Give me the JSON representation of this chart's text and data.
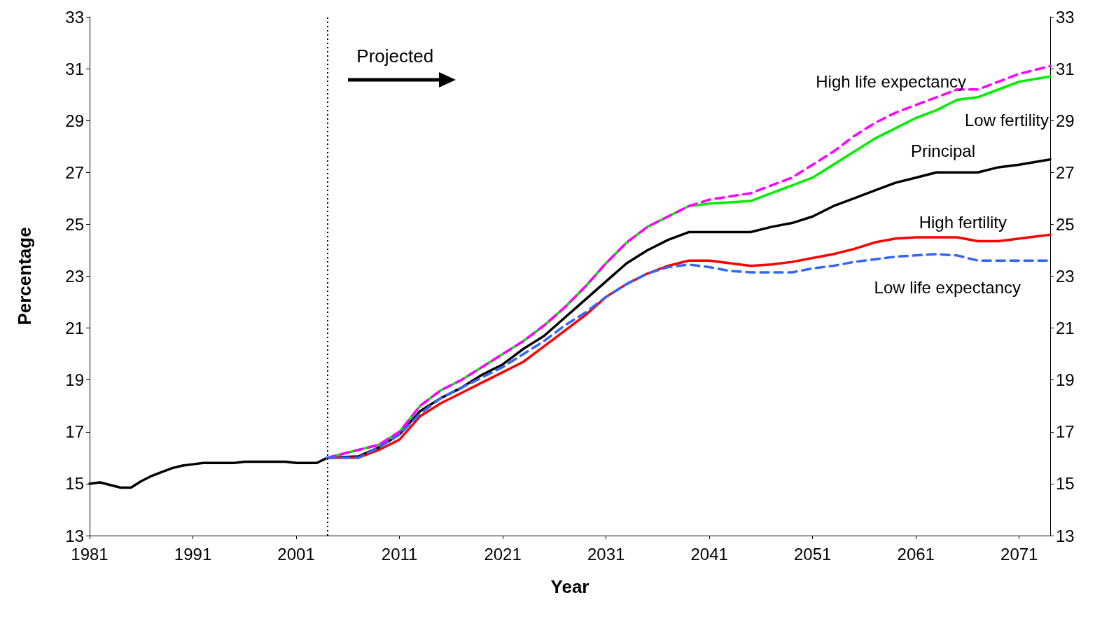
{
  "chart_data": {
    "type": "line",
    "xlabel": "Year",
    "ylabel": "Percentage",
    "xlim": [
      1981,
      2074
    ],
    "xticks": [
      1981,
      1991,
      2001,
      2011,
      2021,
      2031,
      2041,
      2051,
      2061,
      2071
    ],
    "ylim": [
      13,
      33
    ],
    "yticks": [
      13,
      15,
      17,
      19,
      21,
      23,
      25,
      27,
      29,
      31,
      33
    ],
    "y2lim": [
      13,
      33
    ],
    "y2ticks": [
      13,
      15,
      17,
      19,
      21,
      23,
      25,
      27,
      29,
      31,
      33
    ],
    "grid": false,
    "legend": false,
    "marker": "none",
    "ref_lines": [
      {
        "axis": "x",
        "value": 2004,
        "color": "#000000",
        "line_style": "dotted"
      }
    ],
    "annotations": [
      "Projected"
    ],
    "series": [
      {
        "name": "Principal",
        "color": "#000000",
        "line_style": "solid",
        "x": [
          1981,
          1982,
          1983,
          1984,
          1985,
          1986,
          1987,
          1988,
          1989,
          1990,
          1991,
          1992,
          1995,
          1996,
          2000,
          2001,
          2003,
          2004,
          2007,
          2009,
          2011,
          2013,
          2015,
          2017,
          2019,
          2021,
          2023,
          2025,
          2027,
          2029,
          2031,
          2033,
          2035,
          2037,
          2039,
          2041,
          2043,
          2045,
          2047,
          2049,
          2051,
          2053,
          2055,
          2057,
          2059,
          2061,
          2063,
          2065,
          2067,
          2069,
          2071,
          2074
        ],
        "values": [
          15.0,
          15.05,
          14.95,
          14.85,
          14.85,
          15.1,
          15.3,
          15.45,
          15.6,
          15.7,
          15.75,
          15.8,
          15.8,
          15.85,
          15.85,
          15.8,
          15.8,
          16.0,
          16.05,
          16.4,
          16.9,
          17.8,
          18.3,
          18.7,
          19.2,
          19.6,
          20.2,
          20.7,
          21.4,
          22.1,
          22.8,
          23.5,
          24.0,
          24.4,
          24.7,
          24.7,
          24.7,
          24.7,
          24.9,
          25.05,
          25.3,
          25.7,
          26.0,
          26.3,
          26.6,
          26.8,
          27.0,
          27.0,
          27.0,
          27.2,
          27.3,
          27.5
        ]
      },
      {
        "name": "High life expectancy",
        "color": "#ff00ff",
        "line_style": "dashed",
        "x": [
          2004,
          2009,
          2011,
          2013,
          2015,
          2017,
          2019,
          2021,
          2023,
          2025,
          2027,
          2029,
          2031,
          2033,
          2035,
          2037,
          2039,
          2041,
          2045,
          2049,
          2051,
          2053,
          2055,
          2057,
          2059,
          2061,
          2063,
          2065,
          2067,
          2069,
          2071,
          2074
        ],
        "values": [
          16.0,
          16.5,
          17.0,
          18.0,
          18.6,
          19.0,
          19.5,
          20.0,
          20.5,
          21.1,
          21.8,
          22.6,
          23.5,
          24.3,
          24.9,
          25.3,
          25.7,
          25.95,
          26.2,
          26.8,
          27.3,
          27.8,
          28.4,
          28.9,
          29.3,
          29.6,
          29.9,
          30.2,
          30.2,
          30.5,
          30.8,
          31.1
        ]
      },
      {
        "name": "Low fertility",
        "color": "#00ee00",
        "line_style": "solid",
        "x": [
          2004,
          2009,
          2011,
          2013,
          2015,
          2017,
          2019,
          2021,
          2023,
          2025,
          2027,
          2029,
          2031,
          2033,
          2035,
          2037,
          2039,
          2041,
          2043,
          2045,
          2047,
          2049,
          2051,
          2053,
          2055,
          2057,
          2059,
          2061,
          2063,
          2065,
          2067,
          2069,
          2071,
          2074
        ],
        "values": [
          16.0,
          16.5,
          17.0,
          18.0,
          18.6,
          19.0,
          19.5,
          20.0,
          20.5,
          21.1,
          21.8,
          22.6,
          23.5,
          24.3,
          24.9,
          25.3,
          25.7,
          25.8,
          25.85,
          25.9,
          26.2,
          26.5,
          26.8,
          27.3,
          27.8,
          28.3,
          28.7,
          29.1,
          29.4,
          29.8,
          29.9,
          30.2,
          30.5,
          30.7
        ]
      },
      {
        "name": "High fertility",
        "color": "#ff0000",
        "line_style": "solid",
        "x": [
          2004,
          2007,
          2009,
          2011,
          2013,
          2015,
          2017,
          2019,
          2021,
          2023,
          2025,
          2027,
          2029,
          2031,
          2033,
          2035,
          2037,
          2039,
          2041,
          2043,
          2045,
          2047,
          2049,
          2051,
          2053,
          2055,
          2057,
          2059,
          2061,
          2063,
          2065,
          2067,
          2069,
          2071,
          2074
        ],
        "values": [
          16.0,
          16.0,
          16.3,
          16.7,
          17.6,
          18.1,
          18.5,
          18.9,
          19.3,
          19.7,
          20.3,
          20.9,
          21.5,
          22.2,
          22.7,
          23.1,
          23.4,
          23.6,
          23.6,
          23.5,
          23.4,
          23.45,
          23.55,
          23.7,
          23.85,
          24.05,
          24.3,
          24.45,
          24.5,
          24.5,
          24.5,
          24.35,
          24.35,
          24.45,
          24.6
        ]
      },
      {
        "name": "Low life expectancy",
        "color": "#3366ff",
        "line_style": "dashed",
        "x": [
          2004,
          2007,
          2009,
          2011,
          2013,
          2015,
          2017,
          2019,
          2021,
          2023,
          2025,
          2027,
          2029,
          2031,
          2033,
          2035,
          2037,
          2039,
          2041,
          2043,
          2045,
          2047,
          2049,
          2051,
          2053,
          2055,
          2057,
          2059,
          2061,
          2063,
          2065,
          2067,
          2069,
          2071,
          2074
        ],
        "values": [
          16.0,
          16.0,
          16.4,
          16.9,
          17.7,
          18.3,
          18.7,
          19.1,
          19.5,
          20.0,
          20.5,
          21.1,
          21.6,
          22.2,
          22.7,
          23.1,
          23.35,
          23.45,
          23.35,
          23.2,
          23.15,
          23.15,
          23.15,
          23.3,
          23.4,
          23.55,
          23.65,
          23.75,
          23.8,
          23.85,
          23.8,
          23.6,
          23.6,
          23.6,
          23.6
        ]
      }
    ]
  }
}
